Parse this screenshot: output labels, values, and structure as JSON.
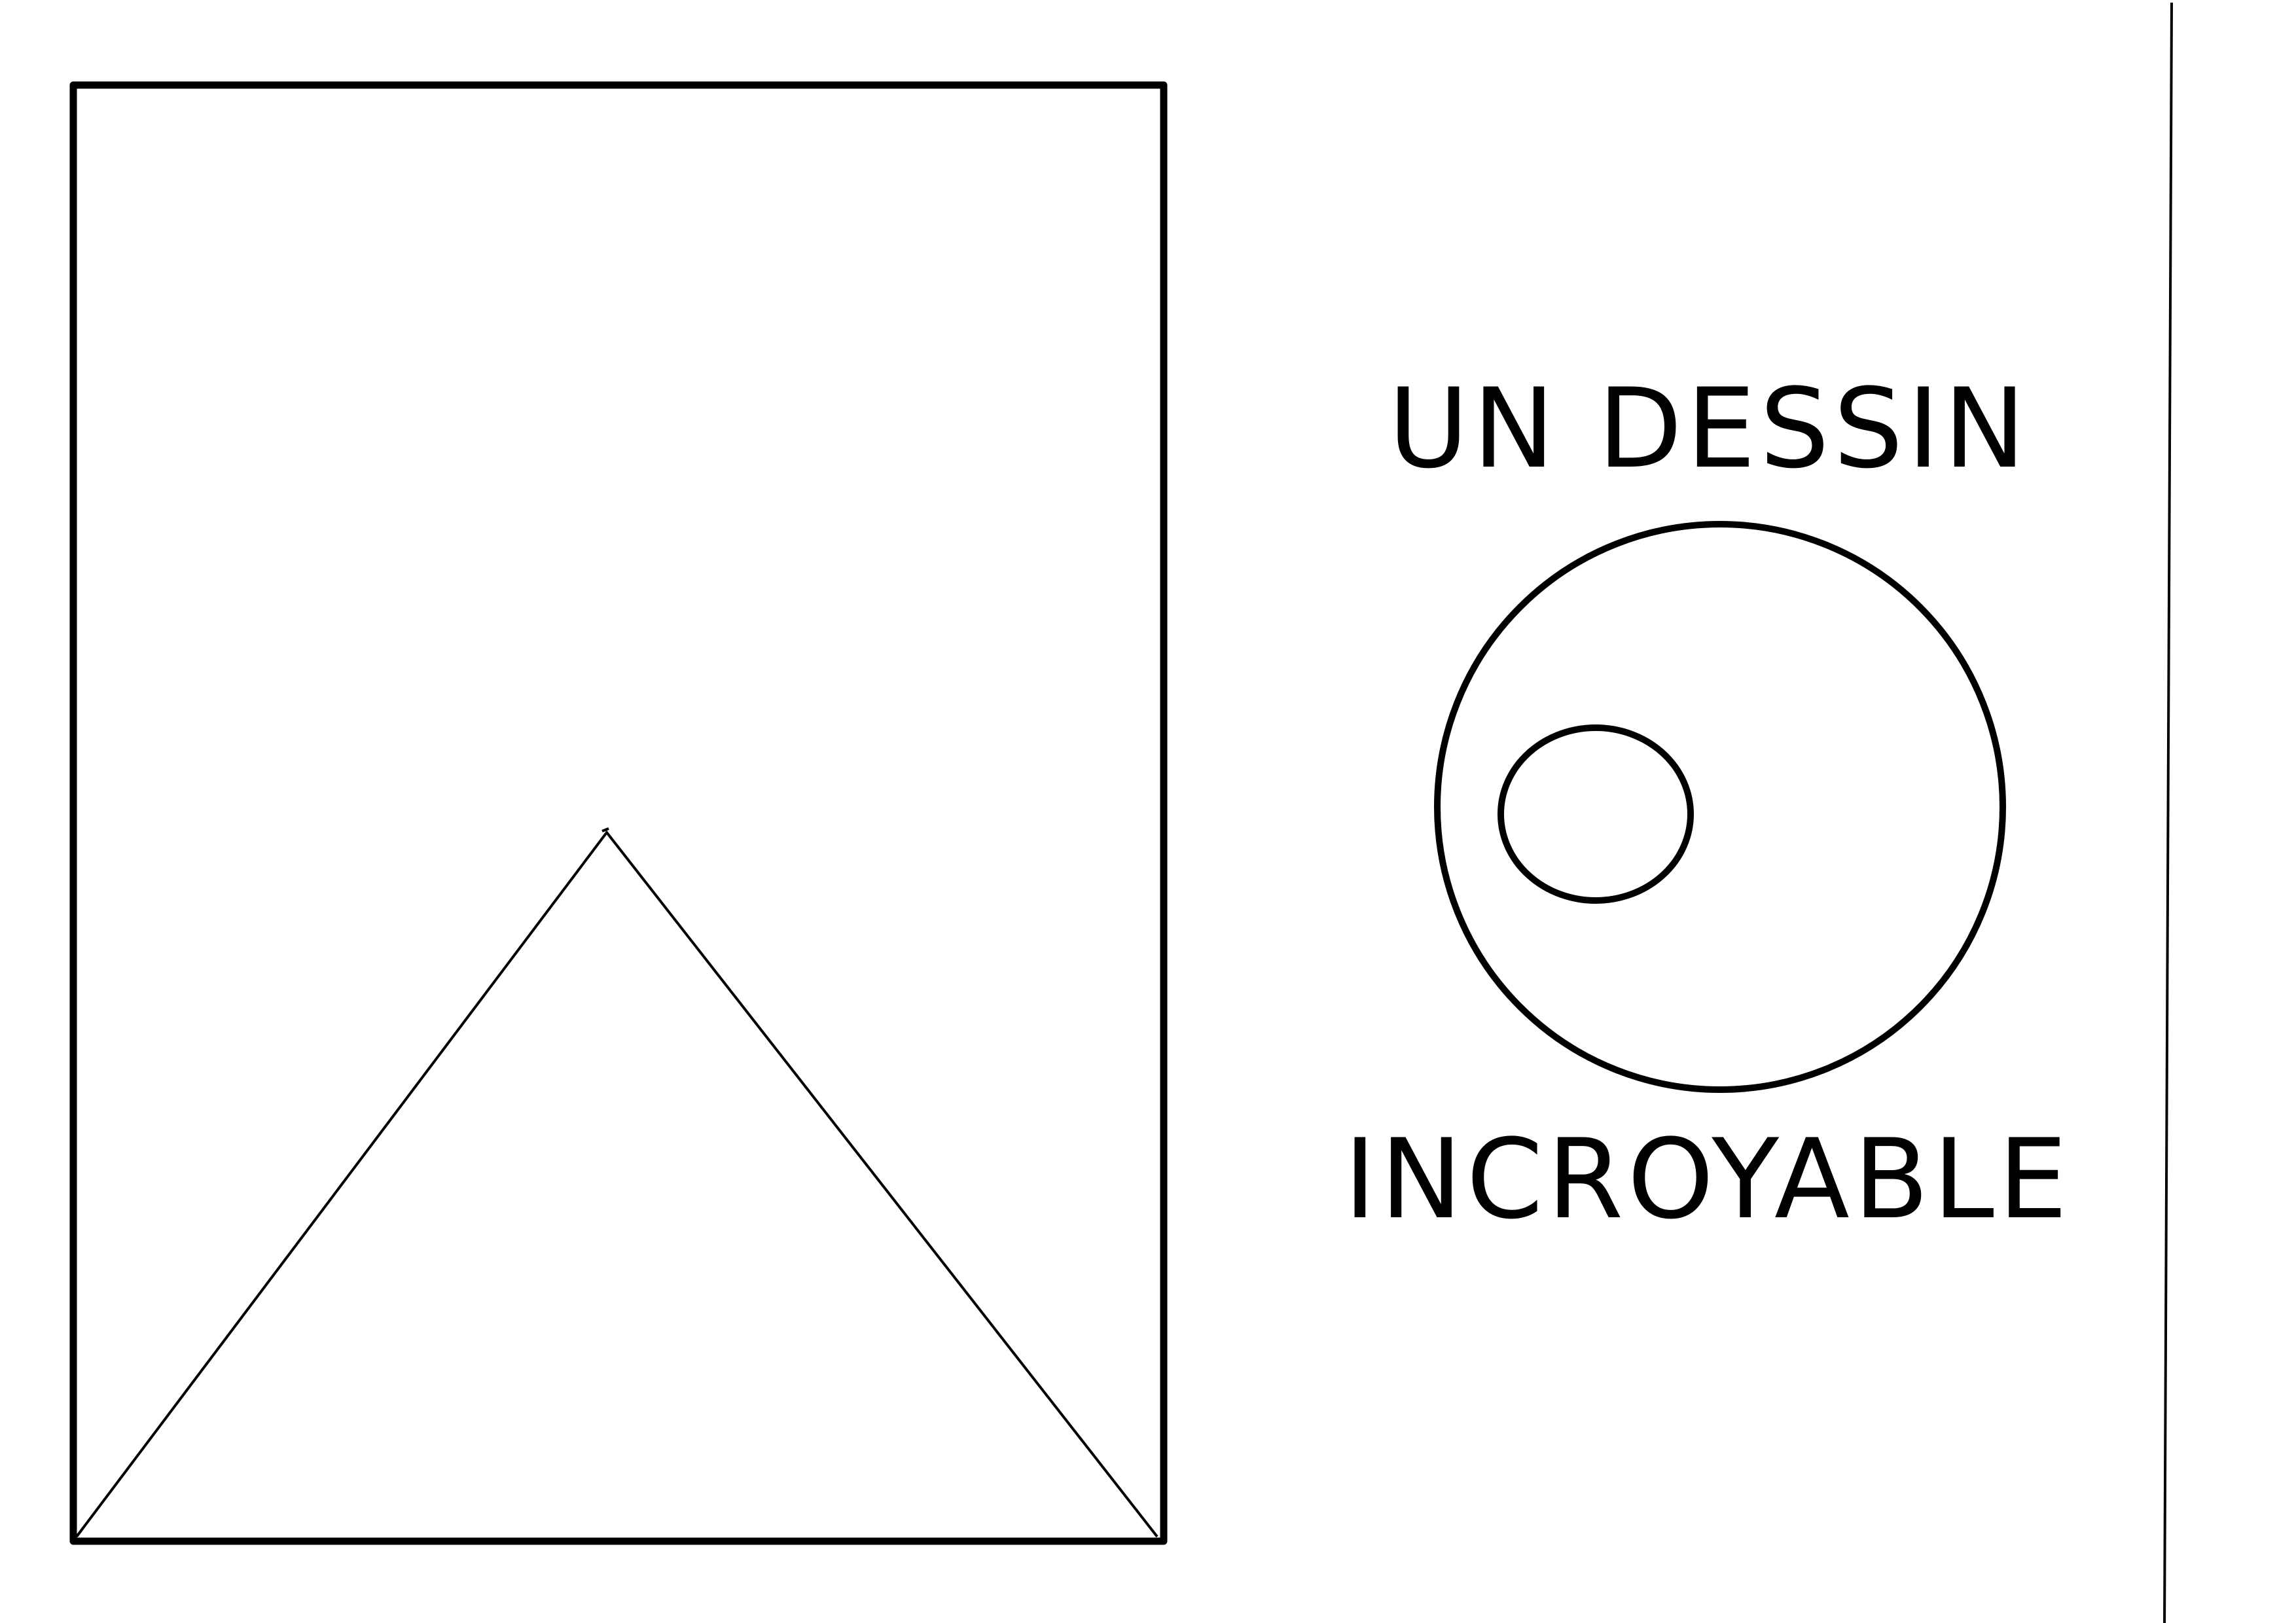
{
  "drawing": {
    "title_line1": "UN DESSIN",
    "title_line2": "INCROYABLE",
    "ink_color": "#000000",
    "background_color": "#ffffff"
  }
}
